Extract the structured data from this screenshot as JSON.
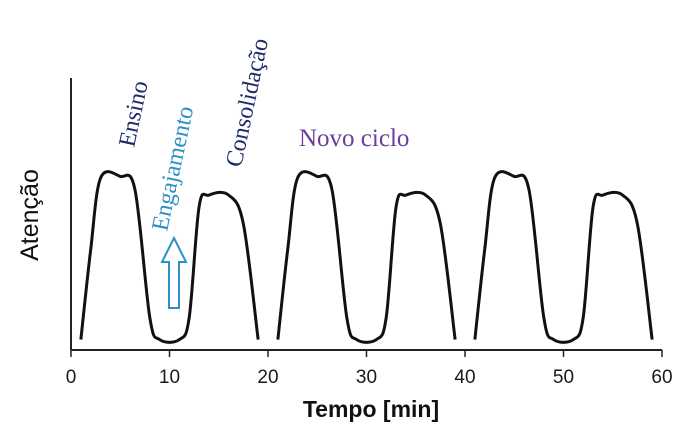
{
  "chart_data": {
    "type": "line",
    "title": "",
    "xlabel": "Tempo [min]",
    "ylabel": "Atenção",
    "xlim": [
      0,
      60
    ],
    "ylim": [
      0,
      1
    ],
    "x_ticks": [
      "0",
      "10",
      "20",
      "30",
      "40",
      "50",
      "60"
    ],
    "grid": false,
    "series": [
      {
        "color": "#111111",
        "segments": [
          {
            "x": [
              1,
              2,
              3,
              5,
              6.5,
              8,
              9,
              11,
              12,
              13,
              14,
              16,
              17.5,
              19
            ],
            "y": [
              0.02,
              0.55,
              0.97,
              0.98,
              0.9,
              0.15,
              0.02,
              0.02,
              0.15,
              0.8,
              0.87,
              0.87,
              0.7,
              0.02
            ]
          },
          {
            "x": [
              21,
              22,
              23,
              25,
              26.5,
              28,
              29,
              31,
              32,
              33,
              34,
              36,
              37.5,
              39
            ],
            "y": [
              0.02,
              0.55,
              0.97,
              0.98,
              0.9,
              0.15,
              0.02,
              0.02,
              0.15,
              0.8,
              0.87,
              0.87,
              0.7,
              0.02
            ]
          },
          {
            "x": [
              41,
              42,
              43,
              45,
              46.5,
              48,
              49,
              51,
              52,
              53,
              54,
              56,
              57.5,
              59
            ],
            "y": [
              0.02,
              0.55,
              0.97,
              0.98,
              0.9,
              0.15,
              0.02,
              0.02,
              0.15,
              0.8,
              0.87,
              0.87,
              0.7,
              0.02
            ]
          }
        ]
      }
    ],
    "annotations": [
      {
        "text": "Ensino",
        "color": "#1f2a6b"
      },
      {
        "text": "Engajamento",
        "color": "#2d8fc6"
      },
      {
        "text": "Consolidação",
        "color": "#1f2a6b"
      },
      {
        "text": "Novo ciclo",
        "color": "#6a3d9a"
      }
    ],
    "arrow": {
      "label": "up-arrow",
      "color": "#2d8fc6"
    }
  }
}
